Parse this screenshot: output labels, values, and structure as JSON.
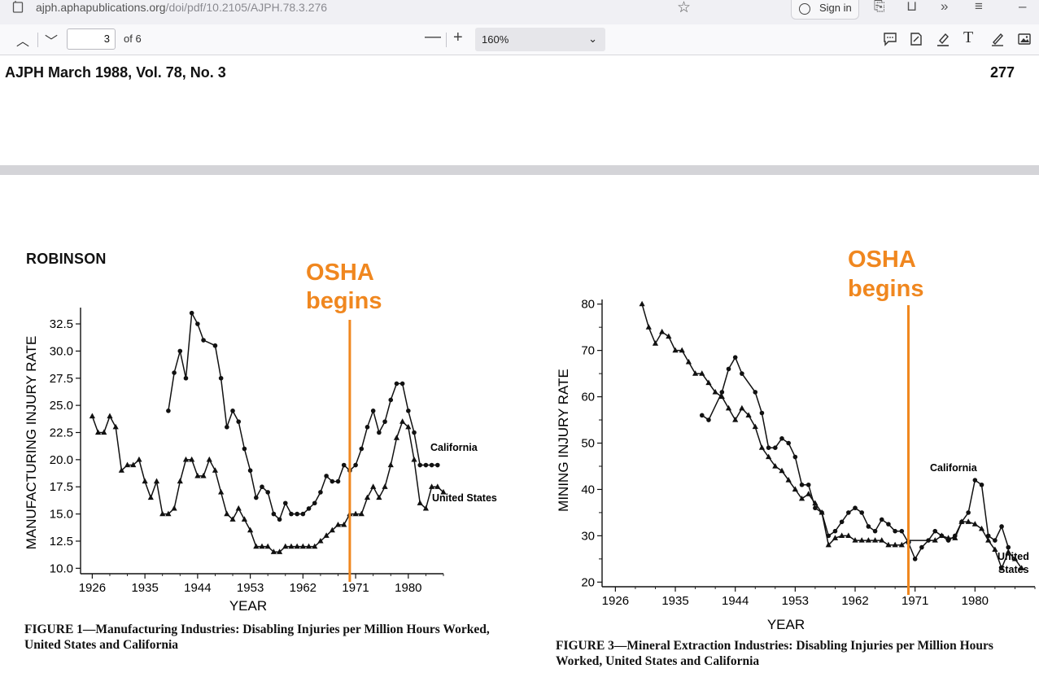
{
  "browser": {
    "url_domain": "ajph.aphapublications.org",
    "url_path": "/doi/pdf/10.2105/AJPH.78.3.276",
    "signin_label": "Sign in"
  },
  "pdf_toolbar": {
    "current_page": "3",
    "of_pages": "of 6",
    "zoom": "160%"
  },
  "page": {
    "journal_header": "AJPH March 1988, Vol. 78, No. 3",
    "page_number": "277",
    "author_header": "ROBINSON",
    "annotation_color": "#f0871f"
  },
  "figures": {
    "fig1_caption": "FIGURE 1—Manufacturing Industries: Disabling Injuries per Million Hours Worked, United States and California",
    "fig3_caption": "FIGURE 3—Mineral Extraction Industries: Disabling Injuries per Million Hours Worked, United States and California",
    "osha_line1": "OSHA",
    "osha_line2": "begins"
  },
  "chart_data": [
    {
      "type": "line",
      "xlabel": "YEAR",
      "ylabel": "MANUFACTURING INJURY RATE",
      "x_ticks": [
        "1926",
        "1935",
        "1944",
        "1953",
        "1962",
        "1971",
        "1980"
      ],
      "y_ticks": [
        "10.0",
        "12.5",
        "15.0",
        "17.5",
        "20.0",
        "22.5",
        "25.0",
        "27.5",
        "30.0",
        "32.5"
      ],
      "xlim": [
        1924,
        1986
      ],
      "ylim": [
        9.5,
        34
      ],
      "osha_year": 1970,
      "series": [
        {
          "name": "California",
          "marker": "circle",
          "points": [
            [
              1939,
              24.5
            ],
            [
              1940,
              28
            ],
            [
              1941,
              30
            ],
            [
              1942,
              27.5
            ],
            [
              1943,
              33.5
            ],
            [
              1944,
              32.5
            ],
            [
              1945,
              31
            ],
            [
              1947,
              30.5
            ],
            [
              1948,
              27.5
            ],
            [
              1949,
              23
            ],
            [
              1950,
              24.5
            ],
            [
              1951,
              23.5
            ],
            [
              1952,
              21
            ],
            [
              1953,
              19
            ],
            [
              1954,
              16.5
            ],
            [
              1955,
              17.5
            ],
            [
              1956,
              17
            ],
            [
              1957,
              15
            ],
            [
              1958,
              14.5
            ],
            [
              1959,
              16
            ],
            [
              1960,
              15
            ],
            [
              1961,
              15
            ],
            [
              1962,
              15
            ],
            [
              1963,
              15.5
            ],
            [
              1964,
              16
            ],
            [
              1965,
              17
            ],
            [
              1966,
              18.5
            ],
            [
              1967,
              18
            ],
            [
              1968,
              18
            ],
            [
              1969,
              19.5
            ],
            [
              1970,
              19
            ],
            [
              1971,
              19.5
            ],
            [
              1972,
              21
            ],
            [
              1973,
              23
            ],
            [
              1974,
              24.5
            ],
            [
              1975,
              22.5
            ],
            [
              1976,
              23.5
            ],
            [
              1977,
              25.5
            ],
            [
              1978,
              27
            ],
            [
              1979,
              27
            ],
            [
              1980,
              24.5
            ],
            [
              1981,
              22.5
            ],
            [
              1982,
              19.5
            ],
            [
              1983,
              19.5
            ],
            [
              1984,
              19.5
            ],
            [
              1985,
              19.5
            ]
          ]
        },
        {
          "name": "United States",
          "marker": "triangle",
          "points": [
            [
              1926,
              24
            ],
            [
              1927,
              22.5
            ],
            [
              1928,
              22.5
            ],
            [
              1929,
              24
            ],
            [
              1930,
              23
            ],
            [
              1931,
              19
            ],
            [
              1932,
              19.5
            ],
            [
              1933,
              19.5
            ],
            [
              1934,
              20
            ],
            [
              1935,
              18
            ],
            [
              1936,
              16.5
            ],
            [
              1937,
              18
            ],
            [
              1938,
              15
            ],
            [
              1939,
              15
            ],
            [
              1940,
              15.5
            ],
            [
              1941,
              18
            ],
            [
              1942,
              20
            ],
            [
              1943,
              20
            ],
            [
              1944,
              18.5
            ],
            [
              1945,
              18.5
            ],
            [
              1946,
              20
            ],
            [
              1947,
              19
            ],
            [
              1948,
              17
            ],
            [
              1949,
              15
            ],
            [
              1950,
              14.5
            ],
            [
              1951,
              15.5
            ],
            [
              1952,
              14.5
            ],
            [
              1953,
              13.5
            ],
            [
              1954,
              12
            ],
            [
              1955,
              12
            ],
            [
              1956,
              12
            ],
            [
              1957,
              11.5
            ],
            [
              1958,
              11.5
            ],
            [
              1959,
              12
            ],
            [
              1960,
              12
            ],
            [
              1961,
              12
            ],
            [
              1962,
              12
            ],
            [
              1963,
              12
            ],
            [
              1964,
              12
            ],
            [
              1965,
              12.5
            ],
            [
              1966,
              13
            ],
            [
              1967,
              13.5
            ],
            [
              1968,
              14
            ],
            [
              1969,
              14
            ],
            [
              1970,
              15
            ],
            [
              1971,
              15
            ],
            [
              1972,
              15
            ],
            [
              1973,
              16.5
            ],
            [
              1974,
              17.5
            ],
            [
              1975,
              16.5
            ],
            [
              1976,
              17.5
            ],
            [
              1977,
              19.5
            ],
            [
              1978,
              22
            ],
            [
              1979,
              23.5
            ],
            [
              1980,
              23
            ],
            [
              1981,
              20
            ],
            [
              1982,
              16
            ],
            [
              1983,
              15.5
            ],
            [
              1984,
              17.5
            ],
            [
              1985,
              17.5
            ],
            [
              1986,
              17
            ]
          ]
        }
      ]
    },
    {
      "type": "line",
      "xlabel": "YEAR",
      "ylabel": "MINING INJURY RATE",
      "x_ticks": [
        "1926",
        "1935",
        "1944",
        "1953",
        "1962",
        "1971",
        "1980"
      ],
      "y_ticks": [
        "20",
        "30",
        "40",
        "50",
        "60",
        "70",
        "80"
      ],
      "xlim": [
        1924,
        1989
      ],
      "ylim": [
        19,
        81
      ],
      "osha_year": 1970,
      "series": [
        {
          "name": "California",
          "marker": "circle",
          "points": [
            [
              1939,
              56
            ],
            [
              1940,
              55
            ],
            [
              1942,
              61
            ],
            [
              1943,
              66
            ],
            [
              1944,
              68.5
            ],
            [
              1945,
              65
            ],
            [
              1947,
              61
            ],
            [
              1948,
              56.5
            ],
            [
              1949,
              49
            ],
            [
              1950,
              49
            ],
            [
              1951,
              51
            ],
            [
              1952,
              50
            ],
            [
              1953,
              47
            ],
            [
              1954,
              41
            ],
            [
              1955,
              41
            ],
            [
              1956,
              36
            ],
            [
              1957,
              35
            ],
            [
              1958,
              30
            ],
            [
              1959,
              31
            ],
            [
              1960,
              33
            ],
            [
              1961,
              35
            ],
            [
              1962,
              36
            ],
            [
              1963,
              35
            ],
            [
              1964,
              32
            ],
            [
              1965,
              31
            ],
            [
              1966,
              33.5
            ],
            [
              1967,
              32.5
            ],
            [
              1968,
              31
            ],
            [
              1969,
              31
            ],
            [
              1970,
              28.5
            ],
            [
              1971,
              25
            ],
            [
              1972,
              27.5
            ],
            [
              1973,
              29
            ],
            [
              1974,
              31
            ],
            [
              1975,
              30
            ],
            [
              1976,
              29
            ],
            [
              1977,
              30
            ],
            [
              1978,
              33
            ],
            [
              1979,
              35
            ],
            [
              1980,
              42
            ],
            [
              1981,
              41
            ],
            [
              1982,
              30
            ],
            [
              1983,
              29
            ],
            [
              1984,
              32
            ],
            [
              1985,
              27.5
            ]
          ]
        },
        {
          "name": "United States",
          "marker": "triangle",
          "points": [
            [
              1930,
              80
            ],
            [
              1931,
              75
            ],
            [
              1932,
              71.5
            ],
            [
              1933,
              74
            ],
            [
              1934,
              73
            ],
            [
              1935,
              70
            ],
            [
              1936,
              70
            ],
            [
              1937,
              67.5
            ],
            [
              1938,
              65
            ],
            [
              1939,
              65
            ],
            [
              1940,
              63
            ],
            [
              1941,
              61
            ],
            [
              1942,
              60
            ],
            [
              1943,
              57.5
            ],
            [
              1944,
              55
            ],
            [
              1945,
              57.5
            ],
            [
              1946,
              56
            ],
            [
              1947,
              53.5
            ],
            [
              1948,
              49
            ],
            [
              1949,
              47
            ],
            [
              1950,
              45
            ],
            [
              1951,
              44
            ],
            [
              1952,
              42
            ],
            [
              1953,
              40
            ],
            [
              1954,
              38
            ],
            [
              1955,
              39
            ],
            [
              1956,
              37
            ],
            [
              1957,
              35
            ],
            [
              1958,
              28
            ],
            [
              1959,
              29.5
            ],
            [
              1960,
              30
            ],
            [
              1961,
              30
            ],
            [
              1962,
              29
            ],
            [
              1963,
              29
            ],
            [
              1964,
              29
            ],
            [
              1965,
              29
            ],
            [
              1966,
              29
            ],
            [
              1967,
              28
            ],
            [
              1968,
              28
            ],
            [
              1969,
              28
            ],
            [
              1970,
              29
            ],
            [
              1974,
              29
            ],
            [
              1975,
              30
            ],
            [
              1976,
              29.5
            ],
            [
              1977,
              29.5
            ],
            [
              1978,
              33
            ],
            [
              1979,
              33
            ],
            [
              1980,
              32.5
            ],
            [
              1981,
              31.5
            ],
            [
              1982,
              29
            ],
            [
              1983,
              27
            ],
            [
              1984,
              23
            ],
            [
              1985,
              26.5
            ],
            [
              1986,
              25
            ],
            [
              1987,
              23
            ]
          ]
        }
      ]
    }
  ]
}
